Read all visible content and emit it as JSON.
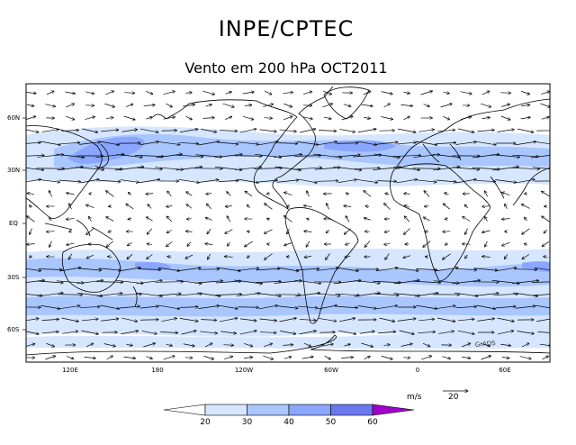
{
  "header": {
    "title": "INPE/CPTEC",
    "subtitle": "Vento em 200 hPa OCT2011"
  },
  "map": {
    "lat_labels": [
      "60N",
      "30N",
      "EQ",
      "30S",
      "60S"
    ],
    "lon_labels": [
      "120E",
      "180",
      "120W",
      "60W",
      "0",
      "60E"
    ],
    "watermark": "GrADS"
  },
  "legend": {
    "units": "m/s",
    "ref_vector": "20",
    "levels": [
      "20",
      "30",
      "40",
      "50",
      "60"
    ],
    "colors": [
      "#ffffff",
      "#d6e6ff",
      "#a9c6ff",
      "#8aa6ff",
      "#6a78f0",
      "#a000c8"
    ]
  },
  "colors": {
    "land_line": "#000000",
    "band_light": "#d6e6ff",
    "band_mid": "#a9c6ff",
    "band_strong": "#8aa6ff"
  }
}
